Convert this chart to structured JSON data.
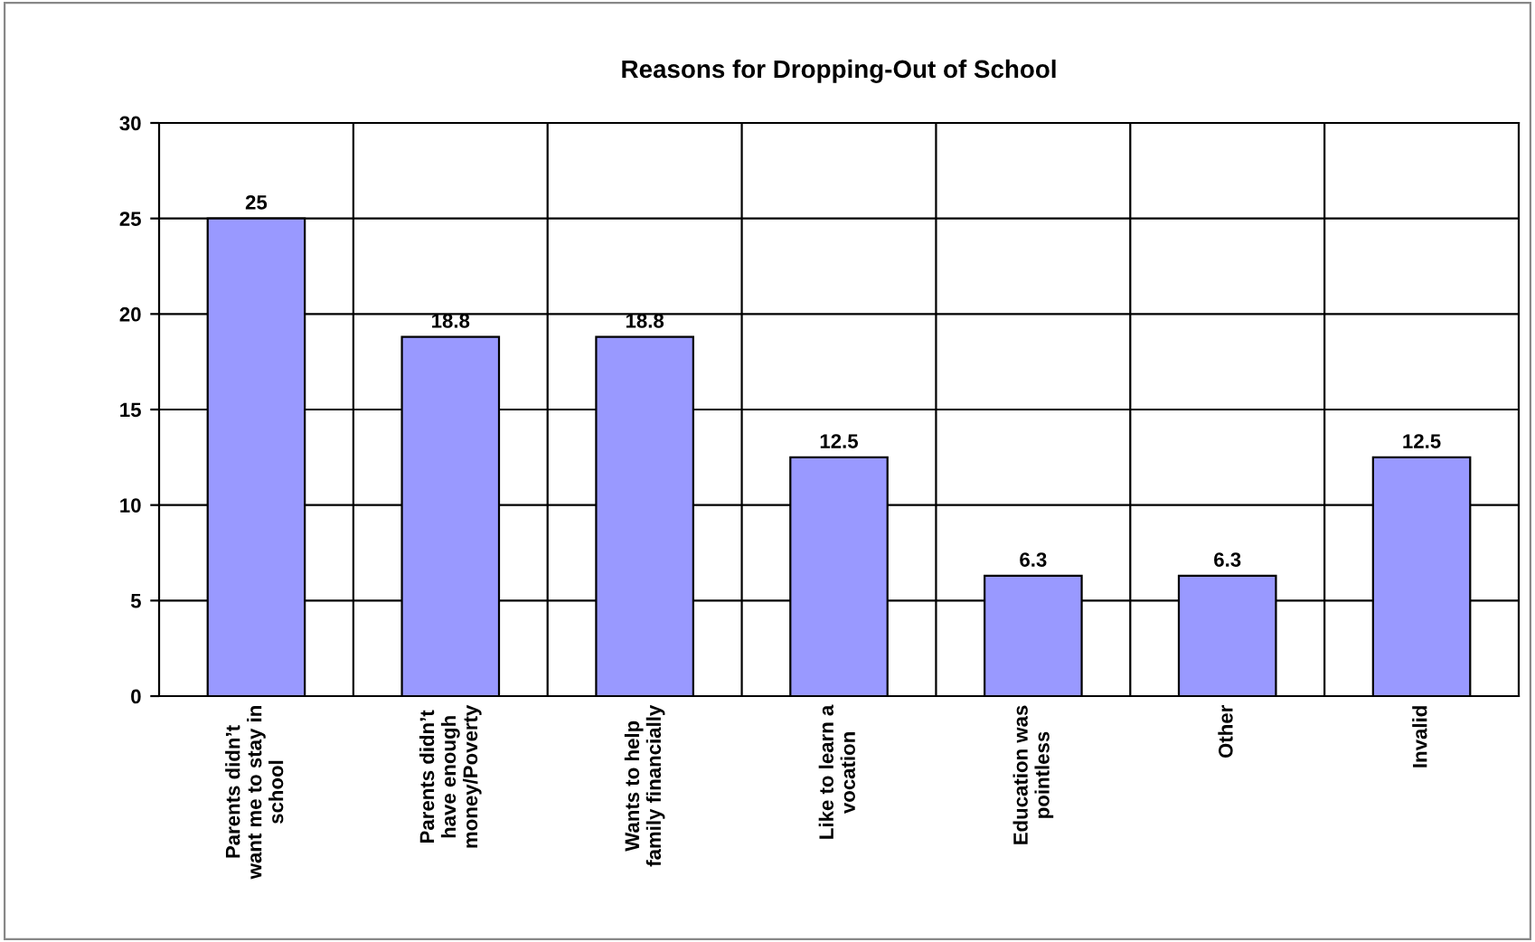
{
  "chart_data": {
    "type": "bar",
    "title": "Reasons for Dropping-Out of School",
    "categories": [
      "Parents didn’t\nwant me to stay in\nschool",
      "Parents didn’t\nhave enough\nmoney/Poverty",
      "Wants to help\nfamily financially",
      "Like to learn a\nvocation",
      "Education was\npointless",
      "Other",
      "Invalid"
    ],
    "values": [
      25,
      18.8,
      18.8,
      12.5,
      6.3,
      6.3,
      12.5
    ],
    "color": "#9999ff",
    "ylim": [
      0,
      30
    ],
    "yticks": [
      0,
      5,
      10,
      15,
      20,
      25,
      30
    ],
    "grid": true,
    "data_labels": true
  }
}
